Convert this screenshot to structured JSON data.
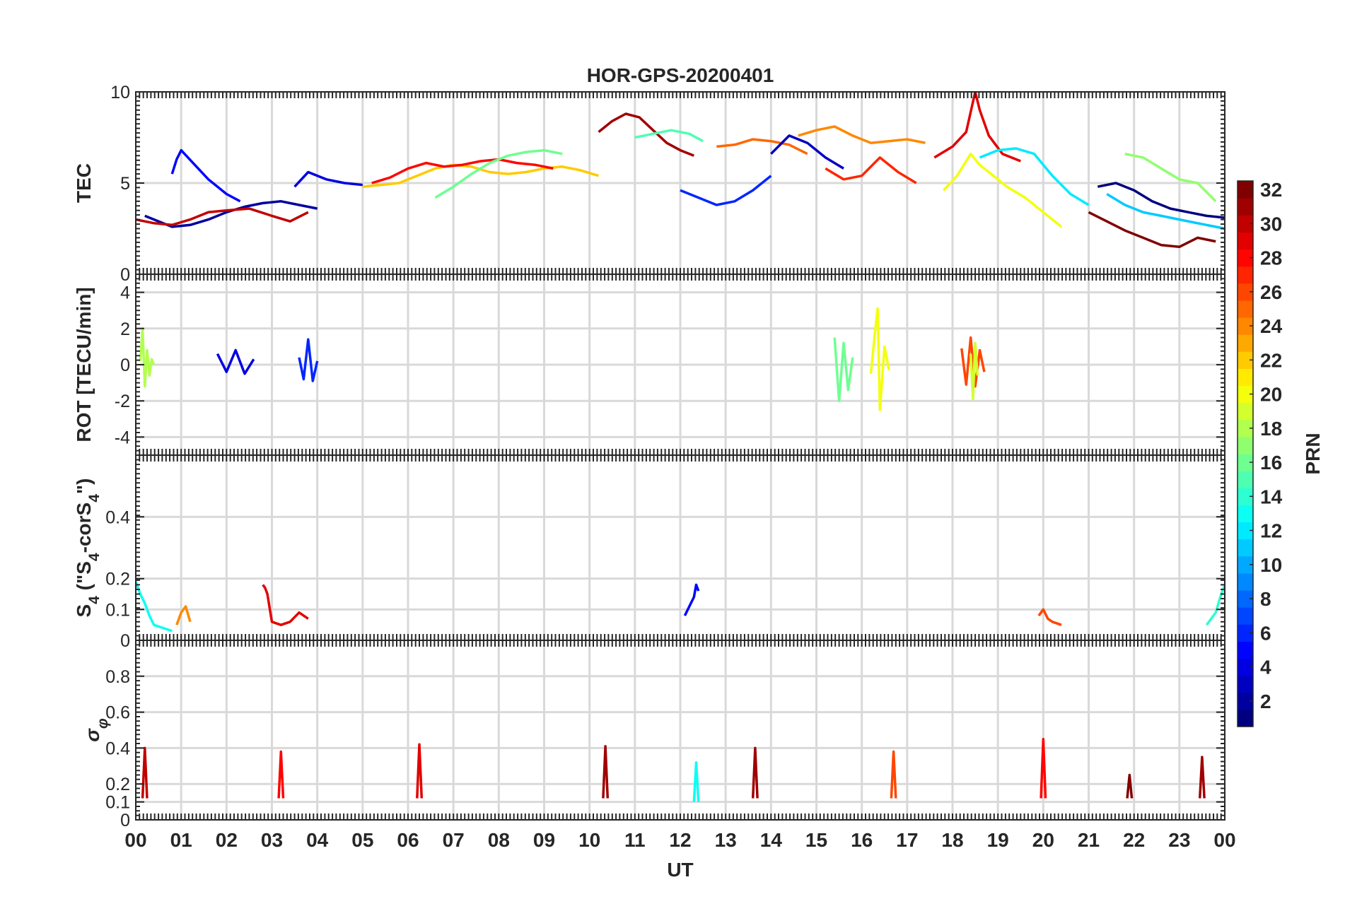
{
  "chart_data": {
    "type": "line",
    "title": "HOR-GPS-20200401",
    "xlabel": "UT",
    "x_tick_labels": [
      "00",
      "01",
      "02",
      "03",
      "04",
      "05",
      "06",
      "07",
      "08",
      "09",
      "10",
      "11",
      "12",
      "13",
      "14",
      "15",
      "16",
      "17",
      "18",
      "19",
      "20",
      "21",
      "22",
      "23",
      "00"
    ],
    "xlim": [
      0,
      24
    ],
    "grid": true,
    "colorbar": {
      "label": "PRN",
      "range": [
        1,
        32
      ],
      "tick_labels": [
        "2",
        "4",
        "6",
        "8",
        "10",
        "12",
        "14",
        "16",
        "18",
        "20",
        "22",
        "24",
        "26",
        "28",
        "30",
        "32"
      ],
      "colormap": "jet"
    },
    "panels": [
      {
        "ylabel": "TEC",
        "ylim": [
          0,
          10
        ],
        "y_tick_labels": [
          "0",
          "5",
          "10"
        ],
        "series": [
          {
            "prn": 2,
            "x": [
              0.2,
              0.6,
              0.8,
              1.2,
              1.6,
              2.0,
              2.4,
              2.8,
              3.2,
              3.6,
              4.0
            ],
            "y": [
              3.2,
              2.8,
              2.6,
              2.7,
              3.0,
              3.4,
              3.7,
              3.9,
              4.0,
              3.8,
              3.6
            ]
          },
          {
            "prn": 5,
            "x": [
              0.8,
              0.9,
              1.0,
              1.3,
              1.6,
              2.0,
              2.3
            ],
            "y": [
              5.5,
              6.3,
              6.8,
              6.0,
              5.2,
              4.4,
              4.0
            ]
          },
          {
            "prn": 4,
            "x": [
              3.5,
              3.8,
              4.2,
              4.6,
              5.0
            ],
            "y": [
              4.8,
              5.6,
              5.2,
              5.0,
              4.9
            ]
          },
          {
            "prn": 30,
            "x": [
              0.0,
              0.4,
              0.8,
              1.2,
              1.6,
              2.0,
              2.5,
              3.0,
              3.4,
              3.8
            ],
            "y": [
              3.0,
              2.8,
              2.7,
              3.0,
              3.4,
              3.5,
              3.6,
              3.2,
              2.9,
              3.4
            ]
          },
          {
            "prn": 22,
            "x": [
              5.0,
              5.4,
              5.8,
              6.2,
              6.6,
              7.0,
              7.4,
              7.8,
              8.2,
              8.6,
              9.0,
              9.4,
              9.8,
              10.2
            ],
            "y": [
              4.8,
              4.9,
              5.0,
              5.4,
              5.8,
              6.0,
              5.9,
              5.6,
              5.5,
              5.6,
              5.8,
              5.9,
              5.7,
              5.4
            ]
          },
          {
            "prn": 28,
            "x": [
              5.2,
              5.6,
              6.0,
              6.4,
              6.8,
              7.2,
              7.6,
              8.0,
              8.4,
              8.8,
              9.2
            ],
            "y": [
              5.0,
              5.3,
              5.8,
              6.1,
              5.9,
              6.0,
              6.2,
              6.3,
              6.1,
              6.0,
              5.8
            ]
          },
          {
            "prn": 16,
            "x": [
              6.6,
              7.0,
              7.4,
              7.8,
              8.2,
              8.6,
              9.0,
              9.4
            ],
            "y": [
              4.2,
              4.8,
              5.5,
              6.1,
              6.5,
              6.7,
              6.8,
              6.6
            ]
          },
          {
            "prn": 31,
            "x": [
              10.2,
              10.5,
              10.8,
              11.1,
              11.4,
              11.7,
              12.0,
              12.3
            ],
            "y": [
              7.8,
              8.4,
              8.8,
              8.6,
              7.9,
              7.2,
              6.8,
              6.5
            ]
          },
          {
            "prn": 15,
            "x": [
              11.0,
              11.4,
              11.8,
              12.2,
              12.5
            ],
            "y": [
              7.5,
              7.7,
              7.9,
              7.7,
              7.3
            ]
          },
          {
            "prn": 6,
            "x": [
              12.0,
              12.4,
              12.8,
              13.2,
              13.6,
              14.0
            ],
            "y": [
              4.6,
              4.2,
              3.8,
              4.0,
              4.6,
              5.4
            ]
          },
          {
            "prn": 25,
            "x": [
              12.8,
              13.2,
              13.6,
              14.0,
              14.4,
              14.8
            ],
            "y": [
              7.0,
              7.1,
              7.4,
              7.3,
              7.1,
              6.6
            ]
          },
          {
            "prn": 24,
            "x": [
              14.6,
              15.0,
              15.4,
              15.8,
              16.2,
              16.6,
              17.0,
              17.4
            ],
            "y": [
              7.6,
              7.9,
              8.1,
              7.6,
              7.2,
              7.3,
              7.4,
              7.2
            ]
          },
          {
            "prn": 27,
            "x": [
              15.2,
              15.6,
              16.0,
              16.4,
              16.8,
              17.2
            ],
            "y": [
              5.8,
              5.2,
              5.4,
              6.4,
              5.6,
              5.0
            ]
          },
          {
            "prn": 3,
            "x": [
              14.0,
              14.4,
              14.8,
              15.2,
              15.6
            ],
            "y": [
              6.6,
              7.6,
              7.2,
              6.4,
              5.8
            ]
          },
          {
            "prn": 20,
            "x": [
              17.8,
              18.1,
              18.4,
              18.6,
              18.8,
              19.2,
              19.6,
              20.0,
              20.4
            ],
            "y": [
              4.6,
              5.4,
              6.6,
              6.0,
              5.6,
              4.8,
              4.2,
              3.4,
              2.6
            ]
          },
          {
            "prn": 29,
            "x": [
              17.6,
              18.0,
              18.3,
              18.5,
              18.6,
              18.8,
              19.1,
              19.5
            ],
            "y": [
              6.4,
              7.0,
              7.8,
              10.0,
              9.0,
              7.6,
              6.6,
              6.2
            ]
          },
          {
            "prn": 12,
            "x": [
              18.6,
              19.0,
              19.4,
              19.8,
              20.2,
              20.6,
              21.0
            ],
            "y": [
              6.4,
              6.8,
              6.9,
              6.6,
              5.4,
              4.4,
              3.8
            ]
          },
          {
            "prn": 32,
            "x": [
              21.0,
              21.4,
              21.8,
              22.2,
              22.6,
              23.0,
              23.4,
              23.8
            ],
            "y": [
              3.4,
              2.9,
              2.4,
              2.0,
              1.6,
              1.5,
              2.0,
              1.8
            ]
          },
          {
            "prn": 17,
            "x": [
              21.8,
              22.2,
              22.6,
              23.0,
              23.4,
              23.8
            ],
            "y": [
              6.6,
              6.4,
              5.8,
              5.2,
              5.0,
              4.0
            ]
          },
          {
            "prn": 11,
            "x": [
              21.4,
              21.8,
              22.2,
              22.6,
              23.0,
              23.4,
              23.8,
              24.0
            ],
            "y": [
              4.4,
              3.8,
              3.4,
              3.2,
              3.0,
              2.8,
              2.6,
              2.5
            ]
          },
          {
            "prn": 1,
            "x": [
              21.2,
              21.6,
              22.0,
              22.4,
              22.8,
              23.2,
              23.6,
              24.0
            ],
            "y": [
              4.8,
              5.0,
              4.6,
              4.0,
              3.6,
              3.4,
              3.2,
              3.1
            ]
          }
        ]
      },
      {
        "ylabel": "ROT [TECU/min]",
        "ylim": [
          -5,
          5
        ],
        "y_tick_labels": [
          "-4",
          "-2",
          "0",
          "2",
          "4"
        ],
        "series": [
          {
            "prn": 18,
            "x": [
              0.1,
              0.15,
              0.2,
              0.25,
              0.3,
              0.35,
              0.4
            ],
            "y": [
              0.2,
              2.0,
              -1.2,
              0.8,
              -0.6,
              0.3,
              0.0
            ]
          },
          {
            "prn": 4,
            "x": [
              1.8,
              2.0,
              2.2,
              2.4,
              2.6
            ],
            "y": [
              0.6,
              -0.4,
              0.8,
              -0.5,
              0.3
            ]
          },
          {
            "prn": 6,
            "x": [
              3.6,
              3.7,
              3.8,
              3.9,
              4.0
            ],
            "y": [
              0.4,
              -0.8,
              1.4,
              -0.9,
              0.2
            ]
          },
          {
            "prn": 16,
            "x": [
              15.4,
              15.5,
              15.6,
              15.7,
              15.8
            ],
            "y": [
              1.5,
              -2.0,
              1.2,
              -1.4,
              0.4
            ]
          },
          {
            "prn": 20,
            "x": [
              16.2,
              16.3,
              16.35,
              16.4,
              16.5,
              16.6
            ],
            "y": [
              -0.5,
              2.0,
              3.1,
              -2.5,
              1.0,
              -0.3
            ]
          },
          {
            "prn": 26,
            "x": [
              18.2,
              18.3,
              18.4,
              18.5,
              18.6,
              18.7
            ],
            "y": [
              0.9,
              -1.1,
              1.5,
              -1.2,
              0.8,
              -0.4
            ]
          },
          {
            "prn": 19,
            "x": [
              18.4,
              18.45,
              18.5,
              18.55
            ],
            "y": [
              0.6,
              -1.9,
              1.2,
              -0.6
            ]
          }
        ]
      },
      {
        "ylabel": "S_4 (\"S_4-corS_4\")",
        "ylim": [
          0,
          0.6
        ],
        "y_tick_labels": [
          "0",
          "0.1",
          "0.2",
          "0.4"
        ],
        "series": [
          {
            "prn": 13,
            "x": [
              0.0,
              0.1,
              0.2,
              0.3,
              0.4,
              0.6,
              0.8
            ],
            "y": [
              0.19,
              0.15,
              0.12,
              0.08,
              0.05,
              0.04,
              0.03
            ]
          },
          {
            "prn": 24,
            "x": [
              0.9,
              1.0,
              1.1,
              1.2
            ],
            "y": [
              0.05,
              0.09,
              0.11,
              0.06
            ]
          },
          {
            "prn": 29,
            "x": [
              2.8,
              2.85,
              2.9,
              3.0,
              3.2,
              3.4,
              3.6,
              3.8
            ],
            "y": [
              0.18,
              0.17,
              0.15,
              0.06,
              0.05,
              0.06,
              0.09,
              0.07
            ]
          },
          {
            "prn": 5,
            "x": [
              12.1,
              12.2,
              12.3,
              12.35,
              12.4
            ],
            "y": [
              0.08,
              0.11,
              0.14,
              0.18,
              0.16
            ]
          },
          {
            "prn": 26,
            "x": [
              19.9,
              20.0,
              20.1,
              20.2,
              20.4
            ],
            "y": [
              0.08,
              0.1,
              0.07,
              0.06,
              0.05
            ]
          },
          {
            "prn": 14,
            "x": [
              23.6,
              23.8,
              23.9,
              24.0
            ],
            "y": [
              0.05,
              0.09,
              0.14,
              0.18
            ]
          }
        ]
      },
      {
        "ylabel": "σ_φ",
        "ylim": [
          0,
          1
        ],
        "y_tick_labels": [
          "0",
          "0.1",
          "0.2",
          "0.4",
          "0.6",
          "0.8"
        ],
        "series": [
          {
            "prn": 30,
            "x": [
              0.15,
              0.2,
              0.25
            ],
            "y": [
              0.12,
              0.4,
              0.12
            ]
          },
          {
            "prn": 28,
            "x": [
              3.15,
              3.2,
              3.25
            ],
            "y": [
              0.12,
              0.38,
              0.12
            ]
          },
          {
            "prn": 29,
            "x": [
              6.2,
              6.25,
              6.3
            ],
            "y": [
              0.12,
              0.42,
              0.12
            ]
          },
          {
            "prn": 31,
            "x": [
              10.3,
              10.35,
              10.4
            ],
            "y": [
              0.12,
              0.41,
              0.12
            ]
          },
          {
            "prn": 13,
            "x": [
              12.3,
              12.35,
              12.4
            ],
            "y": [
              0.1,
              0.32,
              0.1
            ]
          },
          {
            "prn": 31,
            "x": [
              13.6,
              13.65,
              13.7
            ],
            "y": [
              0.12,
              0.4,
              0.12
            ]
          },
          {
            "prn": 26,
            "x": [
              16.65,
              16.7,
              16.75
            ],
            "y": [
              0.12,
              0.38,
              0.12
            ]
          },
          {
            "prn": 28,
            "x": [
              19.95,
              20.0,
              20.05
            ],
            "y": [
              0.12,
              0.45,
              0.12
            ]
          },
          {
            "prn": 32,
            "x": [
              21.85,
              21.9,
              21.95
            ],
            "y": [
              0.12,
              0.25,
              0.12
            ]
          },
          {
            "prn": 31,
            "x": [
              23.45,
              23.5,
              23.55
            ],
            "y": [
              0.12,
              0.35,
              0.12
            ]
          }
        ]
      }
    ]
  }
}
